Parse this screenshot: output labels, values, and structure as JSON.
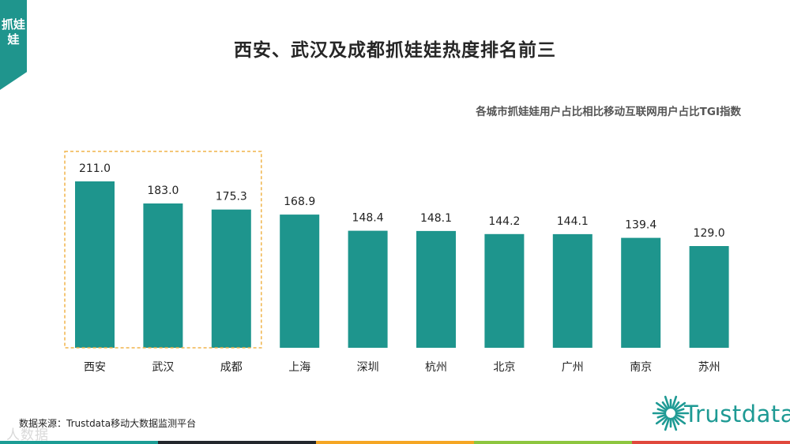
{
  "side_tab": {
    "label": "抓娃娃"
  },
  "page": {
    "title": "西安、武汉及成都抓娃娃热度排名前三"
  },
  "source": {
    "text": "数据来源：Trustdata移动大数据监测平台"
  },
  "watermark": {
    "text": "人数据"
  },
  "logo": {
    "text": "Trustdata"
  },
  "colors": {
    "accent": "#1f958d",
    "bar": "#1e958d",
    "highlight_border": "#f0b44a",
    "strip": [
      "#1b9c94",
      "#23272c",
      "#f5a623",
      "#8dc63f",
      "#e0483c"
    ]
  },
  "chart_data": {
    "type": "bar",
    "title": "各城市抓娃娃用户占比相比移动互联网用户占比TGI指数",
    "categories": [
      "西安",
      "武汉",
      "成都",
      "上海",
      "深圳",
      "杭州",
      "北京",
      "广州",
      "南京",
      "苏州"
    ],
    "values": [
      211.0,
      183.0,
      175.3,
      168.9,
      148.4,
      148.1,
      144.2,
      144.1,
      139.4,
      129.0
    ],
    "value_labels": [
      "211.0",
      "183.0",
      "175.3",
      "168.9",
      "148.4",
      "148.1",
      "144.2",
      "144.1",
      "139.4",
      "129.0"
    ],
    "highlight_top": 3,
    "grid": false,
    "legend": "none"
  }
}
